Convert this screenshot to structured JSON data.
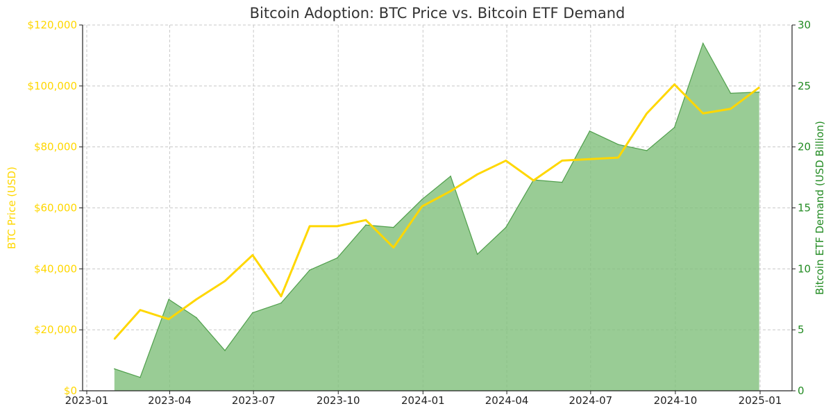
{
  "chart_data": {
    "type": "line",
    "title": "Bitcoin Adoption: BTC Price vs. Bitcoin ETF Demand",
    "ylabel_left": "BTC Price (USD)",
    "ylabel_right": "Bitcoin ETF Demand (USD Billion)",
    "xlabel": "",
    "grid": true,
    "x_range": [
      "2023-01-01",
      "2025-01-01"
    ],
    "x_tick_dates": [
      "2023-01-01",
      "2023-04-01",
      "2023-07-01",
      "2023-10-01",
      "2024-01-01",
      "2024-04-01",
      "2024-07-01",
      "2024-10-01",
      "2025-01-01"
    ],
    "x_tick_labels": [
      "2023-01",
      "2023-04",
      "2023-07",
      "2023-10",
      "2024-01",
      "2024-04",
      "2024-07",
      "2024-10",
      "2025-01"
    ],
    "ylim_left": [
      0,
      120000
    ],
    "ylim_right": [
      0,
      30
    ],
    "left_tick_values": [
      0,
      20000,
      40000,
      60000,
      80000,
      100000,
      120000
    ],
    "left_tick_labels": [
      "$0",
      "$20,000",
      "$40,000",
      "$60,000",
      "$80,000",
      "$100,000",
      "$120,000"
    ],
    "right_tick_values": [
      0,
      5,
      10,
      15,
      20,
      25,
      30
    ],
    "right_tick_labels": [
      "0",
      "5",
      "10",
      "15",
      "20",
      "25",
      "30"
    ],
    "colors": {
      "price": "#ffd700",
      "etf_fill": "#7fbf7b",
      "etf_line": "#4f9f4b",
      "right_axis": "#228b22",
      "grid": "#c8c8c8"
    },
    "dates": [
      "2023-01-31",
      "2023-02-28",
      "2023-03-31",
      "2023-04-30",
      "2023-05-31",
      "2023-06-30",
      "2023-07-31",
      "2023-08-31",
      "2023-09-30",
      "2023-10-31",
      "2023-11-30",
      "2023-12-31",
      "2024-01-31",
      "2024-02-29",
      "2024-03-31",
      "2024-04-30",
      "2024-05-31",
      "2024-06-30",
      "2024-07-31",
      "2024-08-31",
      "2024-09-30",
      "2024-10-31",
      "2024-11-30",
      "2024-12-31"
    ],
    "series": [
      {
        "axis": "left",
        "type": "line",
        "values": [
          17000,
          26500,
          23500,
          30000,
          36000,
          44500,
          31000,
          54000,
          54000,
          56000,
          47000,
          60500,
          65500,
          71000,
          75500,
          69000,
          75500,
          76000,
          76500,
          91000,
          100500,
          91000,
          92500,
          99500
        ]
      },
      {
        "axis": "right",
        "type": "area",
        "values": [
          1.8,
          1.1,
          7.5,
          6.0,
          3.3,
          6.4,
          7.2,
          9.9,
          10.9,
          13.6,
          13.4,
          15.7,
          17.6,
          11.2,
          13.4,
          17.3,
          17.1,
          21.3,
          20.2,
          19.7,
          21.6,
          28.5,
          24.4,
          24.5
        ]
      }
    ]
  }
}
